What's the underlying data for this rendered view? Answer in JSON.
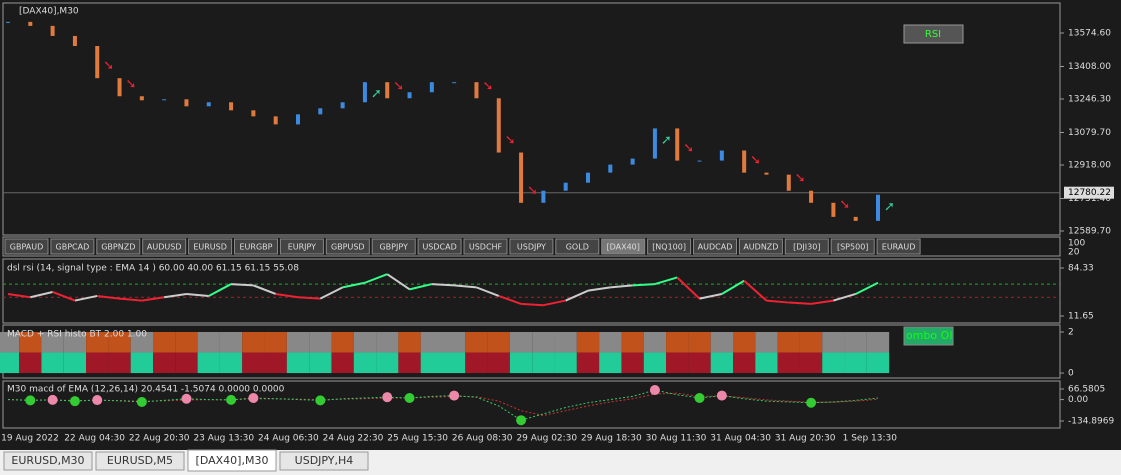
{
  "window": {
    "symbol_label": "[DAX40],M30",
    "rsi_button": "RSI"
  },
  "main": {
    "ylim": [
      12569.8,
      13723.9
    ],
    "yticks": [
      {
        "value": 13574.6,
        "label": "13574.60"
      },
      {
        "value": 13408,
        "label": "13408.00"
      },
      {
        "value": 13246.3,
        "label": "13246.30"
      },
      {
        "value": 13079.7,
        "label": "13079.70"
      },
      {
        "value": 12918,
        "label": "12918.00"
      },
      {
        "value": 12751.4,
        "label": "12751.40"
      },
      {
        "value": 12589.7,
        "label": "12589.70"
      }
    ],
    "last_price": 12780.22,
    "values": [
      13630,
      13610,
      13560,
      13510,
      13350,
      13260,
      13240,
      13245,
      13210,
      13230,
      13190,
      13160,
      13120,
      13170,
      13200,
      13230,
      13330,
      13250,
      13280,
      13330,
      13330,
      13250,
      12980,
      12730,
      12790,
      12830,
      12880,
      12920,
      12950,
      13100,
      12940,
      12940,
      12990,
      12880,
      12870,
      12790,
      12730,
      12660,
      12640,
      12770
    ]
  },
  "buttons": [
    "GBPAUD",
    "GBPCAD",
    "GBPNZD",
    "AUDUSD",
    "EURUSD",
    "EURGBP",
    "EURJPY",
    "GBPUSD",
    "GBPJPY",
    "USDCAD",
    "USDCHF",
    "USDJPY",
    "GOLD",
    "[DAX40]",
    "[NQ100]",
    "AUDCAD",
    "AUDNZD",
    "[DJI30]",
    "[SP500]",
    "EURAUD"
  ],
  "button_pane": {
    "yticks": [
      100,
      20
    ]
  },
  "rsi": {
    "label": "dsl rsi (14, signal type : EMA  14 ) 60.00 40.00 61.15 61.15 55.08",
    "ylim": [
      1.05,
      97.96
    ],
    "yticks": [
      84.33,
      11.65
    ],
    "levels": [
      60,
      40
    ],
    "values": [
      45,
      40,
      48,
      35,
      42,
      38,
      35,
      40,
      45,
      42,
      60,
      58,
      45,
      40,
      38,
      55,
      62,
      75,
      52,
      60,
      58,
      55,
      42,
      30,
      28,
      35,
      50,
      55,
      58,
      60,
      70,
      38,
      45,
      65,
      35,
      32,
      30,
      35,
      45,
      62
    ]
  },
  "histo": {
    "label": "MACD + RSI histo BT 2.00 1.00",
    "ylim": [
      -0.24,
      2.34
    ],
    "yticks": [
      2,
      0
    ],
    "combo_label": "ombo OI",
    "values": [
      1,
      -1,
      1,
      1,
      -1,
      -1,
      1,
      -1,
      -1,
      1,
      1,
      -1,
      -1,
      1,
      1,
      -1,
      1,
      1,
      -1,
      1,
      1,
      -1,
      -1,
      1,
      1,
      1,
      -1,
      1,
      -1,
      1,
      -1,
      -1,
      1,
      -1,
      1,
      -1,
      -1,
      1,
      1,
      1
    ]
  },
  "macd": {
    "label": "M30 macd of EMA (12,26,14) 20.4541 -1.5074 0.0000 0.0000",
    "ylim": [
      -179,
      116.9
    ],
    "yticks": [
      66.5805,
      {
        "value": 0,
        "label": "0.00"
      },
      -134.8969
    ],
    "values": [
      0,
      -5,
      -2,
      -10,
      -3,
      -8,
      -15,
      -5,
      5,
      0,
      -2,
      10,
      5,
      0,
      -5,
      5,
      10,
      15,
      10,
      20,
      25,
      15,
      -40,
      -130,
      -90,
      -50,
      -20,
      0,
      20,
      60,
      30,
      10,
      25,
      5,
      -10,
      -15,
      -20,
      -15,
      -5,
      10
    ],
    "signal_values": [
      0,
      -3,
      -3,
      -6,
      -5,
      -6,
      -10,
      -8,
      -2,
      -1,
      -2,
      4,
      5,
      3,
      -1,
      2,
      6,
      10,
      10,
      15,
      20,
      18,
      -10,
      -70,
      -100,
      -70,
      -40,
      -15,
      5,
      35,
      40,
      20,
      22,
      12,
      -2,
      -10,
      -16,
      -16,
      -10,
      2
    ]
  },
  "x_labels": [
    "19 Aug 2022",
    "22 Aug 04:30",
    "22 Aug 20:30",
    "23 Aug 13:30",
    "24 Aug 06:30",
    "24 Aug 22:30",
    "25 Aug 15:30",
    "26 Aug 08:30",
    "29 Aug 02:30",
    "29 Aug 18:30",
    "30 Aug 11:30",
    "31 Aug 04:30",
    "31 Aug 20:30",
    "1 Sep 13:30"
  ],
  "tabs": [
    "EURUSD,M30",
    "EURUSD,M5",
    "[DAX40],M30",
    "USDJPY,H4"
  ]
}
